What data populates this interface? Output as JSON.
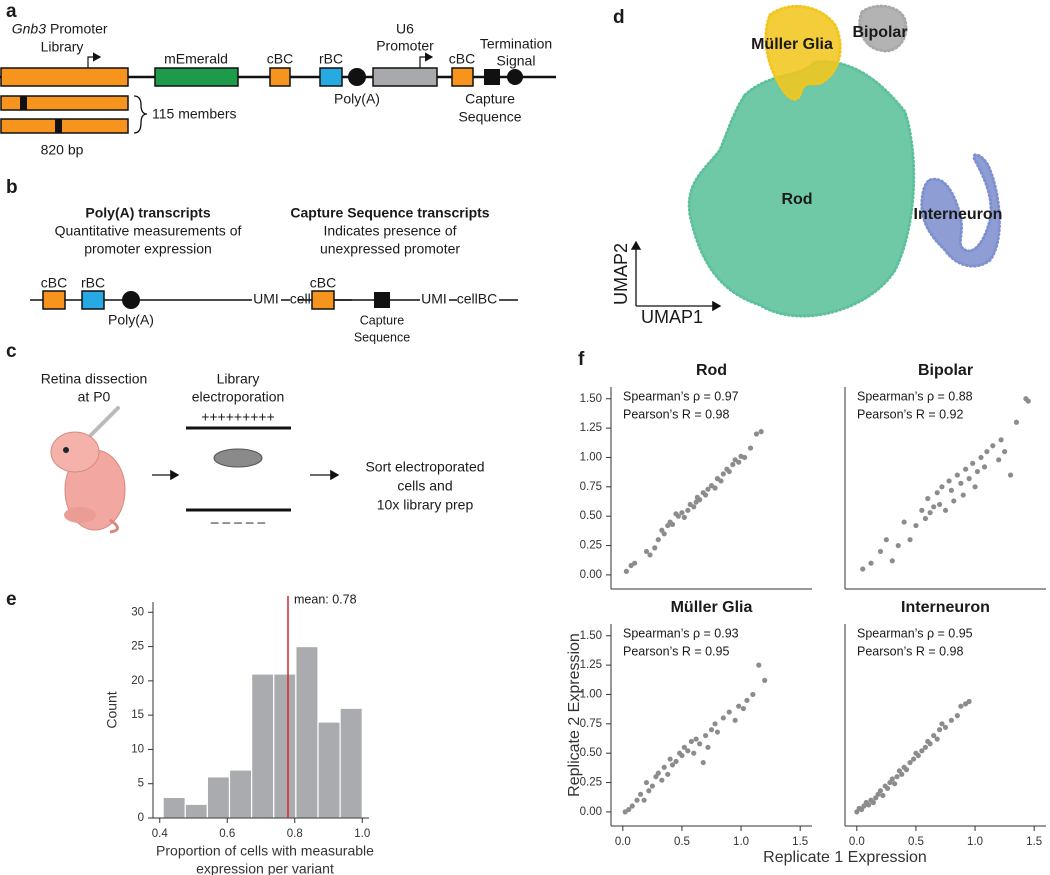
{
  "panel_labels": [
    "a",
    "b",
    "c",
    "d",
    "e",
    "f"
  ],
  "diagrams": {
    "a": {
      "gene": "Gnb3",
      "library_line1": "Promoter",
      "library_line2": "Library",
      "emerald": "mEmerald",
      "cbc1": "cBC",
      "rbc": "rBC",
      "u6_line1": "U6",
      "u6_line2": "Promoter",
      "polya": "Poly(A)",
      "cbc2": "cBC",
      "capture_line1": "Capture",
      "capture_line2": "Sequence",
      "term_line1": "Termination",
      "term_line2": "Signal",
      "members": "115 members",
      "length": "820 bp"
    },
    "b": {
      "left_title": "Poly(A) transcripts",
      "left_line1": "Quantitative measurements of",
      "left_line2": "promoter expression",
      "left_cbc": "cBC",
      "left_rbc": "rBC",
      "left_polya": "Poly(A)",
      "left_umi": "UMI",
      "left_cellbc": "cellBC",
      "right_title": "Capture Sequence transcripts",
      "right_line1": "Indicates presence of",
      "right_line2": "unexpressed promoter",
      "right_cbc": "cBC",
      "right_capture_line1": "Capture",
      "right_capture_line2": "Sequence",
      "right_umi": "UMI",
      "right_cellbc": "cellBC"
    },
    "c": {
      "step1_line1": "Retina dissection",
      "step1_line2": "at P0",
      "step2_line1": "Library",
      "step2_line2": "electroporation",
      "plus": "+++++++++",
      "minus": "– – – – –",
      "step3_line1": "Sort electroporated",
      "step3_line2": "cells and",
      "step3_line3": "10x library prep"
    }
  },
  "shared_labels": {
    "y": "Replicate 2 Expression",
    "x": "Replicate 1 Expression"
  },
  "chart_data": [
    {
      "type": "umap",
      "xlabel": "UMAP1",
      "ylabel": "UMAP2",
      "clusters": [
        {
          "name": "Müller Glia",
          "color": "#f2c61f"
        },
        {
          "name": "Bipolar",
          "color": "#a8a8a8"
        },
        {
          "name": "Rod",
          "color": "#5cc19a"
        },
        {
          "name": "Interneuron",
          "color": "#7f90cf"
        }
      ]
    },
    {
      "type": "histogram",
      "xlabel": [
        "Proportion of cells with measurable",
        "expression per variant"
      ],
      "ylabel": "Count",
      "bins": [
        0.41,
        0.4756,
        0.5411,
        0.6067,
        0.6722,
        0.7378,
        0.8033,
        0.8689,
        0.9344,
        1.0
      ],
      "counts": [
        3,
        2,
        6,
        7,
        21,
        21,
        25,
        14,
        16
      ],
      "color": "#a9abae",
      "mean": 0.78,
      "mean_label": "mean: 0.78",
      "mean_color": "#d62728",
      "xlim": [
        0.38,
        1.02
      ],
      "ylim": [
        0,
        31.5
      ],
      "xticks": [
        0.4,
        0.6,
        0.8,
        {
          "value": 1.0,
          "label": "1.0"
        }
      ],
      "yticks": [
        0,
        5,
        10,
        15,
        20,
        25,
        30
      ]
    },
    {
      "type": "scatter",
      "title": "Rod",
      "annotations": [
        "Spearman’s ρ = 0.97",
        "Pearson’s R = 0.98"
      ],
      "color": "#8c8c8c",
      "x": [
        0.03,
        0.07,
        0.1,
        0.2,
        0.23,
        0.27,
        0.3,
        0.33,
        0.35,
        0.38,
        0.4,
        0.42,
        0.45,
        0.47,
        0.5,
        0.52,
        0.55,
        0.57,
        0.6,
        0.62,
        0.63,
        0.65,
        0.68,
        0.7,
        0.72,
        0.75,
        0.78,
        0.8,
        0.83,
        0.85,
        0.88,
        0.9,
        0.93,
        0.95,
        0.98,
        1.0,
        1.03,
        1.08,
        1.13,
        1.17
      ],
      "values": [
        0.03,
        0.08,
        0.1,
        0.2,
        0.17,
        0.23,
        0.3,
        0.38,
        0.35,
        0.42,
        0.45,
        0.43,
        0.52,
        0.5,
        0.53,
        0.49,
        0.55,
        0.6,
        0.58,
        0.62,
        0.66,
        0.64,
        0.7,
        0.68,
        0.73,
        0.76,
        0.74,
        0.82,
        0.8,
        0.86,
        0.9,
        0.88,
        0.94,
        0.98,
        0.96,
        1.01,
        1.0,
        1.08,
        1.2,
        1.22
      ],
      "xlim": [
        -0.1,
        1.6
      ],
      "ylim": [
        -0.12,
        1.6
      ],
      "yticks": [
        {
          "value": 0,
          "label": "0.00"
        },
        0.25,
        {
          "value": 0.5,
          "label": "0.50"
        },
        0.75,
        {
          "value": 1.0,
          "label": "1.00"
        },
        1.25,
        {
          "value": 1.5,
          "label": "1.50"
        }
      ]
    },
    {
      "type": "scatter",
      "title": "Bipolar",
      "annotations": [
        "Spearman’s ρ = 0.88",
        "Pearson’s R = 0.92"
      ],
      "color": "#8c8c8c",
      "x": [
        0.05,
        0.12,
        0.2,
        0.25,
        0.3,
        0.35,
        0.4,
        0.45,
        0.5,
        0.55,
        0.58,
        0.6,
        0.62,
        0.65,
        0.68,
        0.7,
        0.72,
        0.75,
        0.78,
        0.8,
        0.82,
        0.85,
        0.88,
        0.9,
        0.92,
        0.95,
        0.98,
        1.0,
        1.02,
        1.05,
        1.08,
        1.1,
        1.15,
        1.2,
        1.22,
        1.25,
        1.3,
        1.35,
        1.43,
        1.45
      ],
      "values": [
        0.05,
        0.1,
        0.2,
        0.3,
        0.12,
        0.25,
        0.45,
        0.3,
        0.42,
        0.55,
        0.48,
        0.65,
        0.53,
        0.58,
        0.7,
        0.6,
        0.75,
        0.55,
        0.8,
        0.72,
        0.63,
        0.85,
        0.78,
        0.68,
        0.9,
        0.82,
        0.95,
        0.75,
        0.88,
        1.0,
        0.92,
        1.05,
        1.1,
        0.98,
        1.15,
        1.05,
        0.85,
        1.3,
        1.5,
        1.48
      ],
      "xlim": [
        -0.1,
        1.6
      ],
      "ylim": [
        -0.12,
        1.6
      ]
    },
    {
      "type": "scatter",
      "title": "Müller Glia",
      "annotations": [
        "Spearman’s ρ = 0.93",
        "Pearson’s R = 0.95"
      ],
      "color": "#8c8c8c",
      "x": [
        0.02,
        0.05,
        0.08,
        0.12,
        0.15,
        0.18,
        0.2,
        0.22,
        0.25,
        0.28,
        0.3,
        0.33,
        0.35,
        0.38,
        0.4,
        0.42,
        0.45,
        0.48,
        0.5,
        0.52,
        0.55,
        0.58,
        0.6,
        0.62,
        0.65,
        0.68,
        0.7,
        0.72,
        0.75,
        0.78,
        0.8,
        0.85,
        0.9,
        0.95,
        0.98,
        1.02,
        1.05,
        1.1,
        1.15,
        1.2
      ],
      "values": [
        0.0,
        0.02,
        0.05,
        0.1,
        0.15,
        0.1,
        0.25,
        0.18,
        0.22,
        0.3,
        0.33,
        0.27,
        0.38,
        0.32,
        0.45,
        0.4,
        0.43,
        0.5,
        0.48,
        0.55,
        0.52,
        0.6,
        0.5,
        0.62,
        0.58,
        0.42,
        0.65,
        0.55,
        0.7,
        0.75,
        0.68,
        0.8,
        0.85,
        0.78,
        0.9,
        0.88,
        0.95,
        1.0,
        1.25,
        1.12
      ],
      "xlim": [
        -0.1,
        1.6
      ],
      "ylim": [
        -0.12,
        1.6
      ],
      "xticks": [
        {
          "value": 0,
          "label": "0.0"
        },
        0.5,
        {
          "value": 1.0,
          "label": "1.0"
        },
        1.5
      ],
      "yticks": [
        {
          "value": 0,
          "label": "0.00"
        },
        0.25,
        {
          "value": 0.5,
          "label": "0.50"
        },
        0.75,
        {
          "value": 1.0,
          "label": "1.00"
        },
        1.25,
        {
          "value": 1.5,
          "label": "1.50"
        }
      ]
    },
    {
      "type": "scatter",
      "title": "Interneuron",
      "annotations": [
        "Spearman’s ρ = 0.95",
        "Pearson’s R = 0.98"
      ],
      "color": "#8c8c8c",
      "x": [
        0.0,
        0.02,
        0.04,
        0.06,
        0.08,
        0.1,
        0.12,
        0.14,
        0.16,
        0.18,
        0.2,
        0.22,
        0.24,
        0.26,
        0.28,
        0.3,
        0.32,
        0.34,
        0.36,
        0.38,
        0.4,
        0.42,
        0.45,
        0.48,
        0.5,
        0.52,
        0.55,
        0.58,
        0.6,
        0.62,
        0.65,
        0.68,
        0.7,
        0.72,
        0.75,
        0.8,
        0.85,
        0.88,
        0.92,
        0.95
      ],
      "values": [
        0.0,
        0.03,
        0.02,
        0.05,
        0.08,
        0.06,
        0.1,
        0.08,
        0.12,
        0.15,
        0.18,
        0.14,
        0.22,
        0.2,
        0.25,
        0.28,
        0.24,
        0.3,
        0.35,
        0.32,
        0.38,
        0.36,
        0.42,
        0.45,
        0.5,
        0.48,
        0.52,
        0.55,
        0.6,
        0.58,
        0.65,
        0.62,
        0.7,
        0.75,
        0.72,
        0.78,
        0.82,
        0.9,
        0.92,
        0.94
      ],
      "xlim": [
        -0.1,
        1.6
      ],
      "ylim": [
        -0.12,
        1.6
      ],
      "xticks": [
        {
          "value": 0,
          "label": "0.0"
        },
        0.5,
        {
          "value": 1.0,
          "label": "1.0"
        },
        1.5
      ]
    }
  ]
}
